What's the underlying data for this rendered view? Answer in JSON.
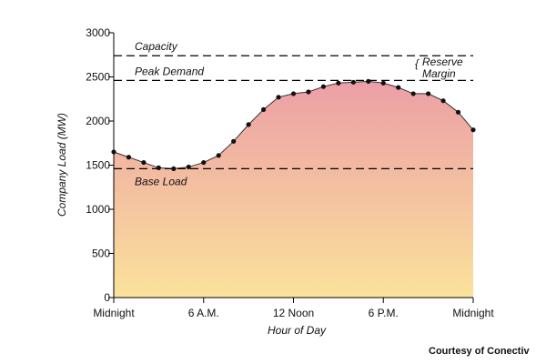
{
  "chart_data": {
    "type": "area",
    "xlabel": "Hour of Day",
    "ylabel": "Company Load (MW)",
    "xlim": [
      0,
      24
    ],
    "ylim": [
      0,
      3000
    ],
    "yticks": [
      0,
      500,
      1000,
      1500,
      2000,
      2500,
      3000
    ],
    "xticks": [
      {
        "value": 0,
        "label": "Midnight"
      },
      {
        "value": 6,
        "label": "6 A.M."
      },
      {
        "value": 12,
        "label": "12 Noon"
      },
      {
        "value": 18,
        "label": "6 P.M."
      },
      {
        "value": 24,
        "label": "Midnight"
      }
    ],
    "x": [
      0,
      1,
      2,
      3,
      4,
      5,
      6,
      7,
      8,
      9,
      10,
      11,
      12,
      13,
      14,
      15,
      16,
      17,
      18,
      19,
      20,
      21,
      22,
      23,
      24
    ],
    "values": [
      1650,
      1590,
      1530,
      1470,
      1460,
      1480,
      1530,
      1610,
      1770,
      1960,
      2130,
      2270,
      2310,
      2330,
      2390,
      2430,
      2440,
      2450,
      2430,
      2380,
      2310,
      2310,
      2230,
      2100,
      1900
    ],
    "reference_lines": [
      {
        "label": "Capacity",
        "value": 2740
      },
      {
        "label": "Peak Demand",
        "value": 2460
      },
      {
        "label": "Base Load",
        "value": 1460
      }
    ],
    "annotations": [
      {
        "text_line1": "Reserve",
        "text_line2": "Margin"
      }
    ],
    "gradient_colors": {
      "top": "#ec9fa6",
      "bottom": "#fbe29b"
    },
    "grid": false
  },
  "credit": "Courtesy of Conectiv"
}
